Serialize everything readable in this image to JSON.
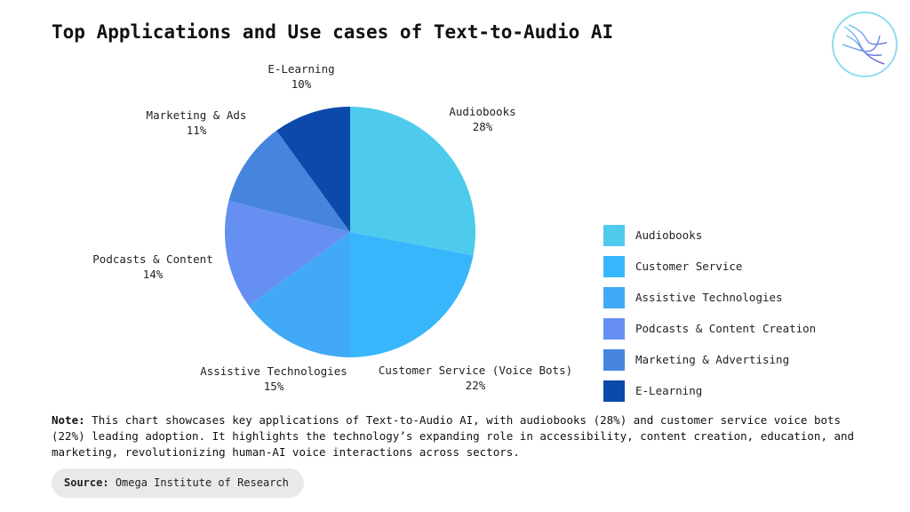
{
  "chart_data": {
    "type": "pie",
    "title": "Top Applications and Use cases of Text-to-Audio AI",
    "categories": [
      "Audiobooks",
      "Customer Service",
      "Assistive Technologies",
      "Podcasts & Content Creation",
      "Marketing & Advertising",
      "E-Learning"
    ],
    "slice_labels": [
      "Audiobooks",
      "Customer Service (Voice Bots)",
      "Assistive Technologies",
      "Podcasts & Content",
      "Marketing & Ads",
      "E-Learning"
    ],
    "values": [
      28,
      22,
      15,
      14,
      11,
      10
    ],
    "value_labels": [
      "28%",
      "22%",
      "15%",
      "14%",
      "11%",
      "10%"
    ],
    "colors": [
      "#4ecbec",
      "#38b6fc",
      "#41a9f6",
      "#6590f2",
      "#4585de",
      "#0b4aab"
    ],
    "legend": "right"
  },
  "note": {
    "label": "Note:",
    "text": "This chart showcases key applications of Text-to-Audio AI, with audiobooks (28%) and customer service voice bots (22%) leading adoption. It highlights the technology’s expanding role in accessibility, content creation, education, and marketing, revolutionizing human-AI voice interactions across sectors."
  },
  "source": {
    "label": "Source:",
    "text": "Omega Institute of Research"
  }
}
